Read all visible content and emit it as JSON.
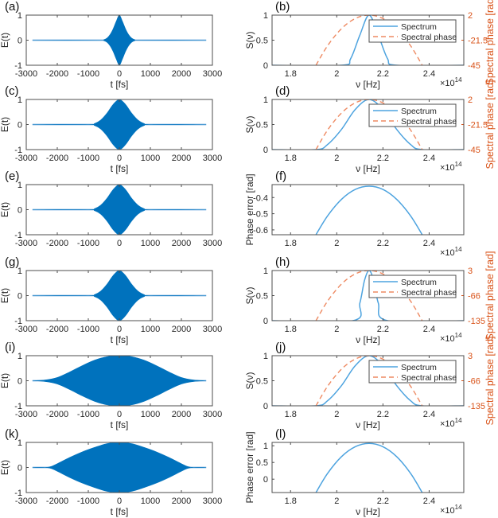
{
  "colors": {
    "signal": "#0072BD",
    "baseline": "#9CC6E8",
    "spectrum": "#4DA3DF",
    "phase": "#EE8A62",
    "right_axis": "#D95319",
    "axis": "#4D4D4D"
  },
  "legend": {
    "spectrum": "Spectrum",
    "phase": "Spectral phase"
  },
  "exponent_label": "×10",
  "exponent_power": "14",
  "chart_data": [
    {
      "panel": "(a)",
      "type": "area",
      "ylabel": "E(t)",
      "xlabel": "t [fs]",
      "xlim": [
        -3000,
        3000
      ],
      "ylim": [
        -1,
        1
      ],
      "xticks": [
        -3000,
        -2000,
        -1000,
        0,
        1000,
        2000,
        3000
      ],
      "xtick_labels": [
        "-3000",
        "-2000",
        "-1000",
        "0",
        "1000",
        "2000",
        "3000"
      ],
      "yticks": [
        -1,
        0,
        1
      ],
      "ytick_labels": [
        "-1",
        "0",
        "1"
      ],
      "envelope": {
        "t": [
          -2800,
          -600,
          -500,
          -400,
          -300,
          -200,
          -100,
          0,
          100,
          200,
          300,
          400,
          500,
          600,
          2800
        ],
        "amplitude": [
          0,
          0,
          0.02,
          0.08,
          0.22,
          0.45,
          0.75,
          1,
          0.75,
          0.45,
          0.22,
          0.08,
          0.02,
          0,
          0
        ]
      }
    },
    {
      "panel": "(b)",
      "type": "line",
      "ylabel": "S(ν)",
      "ylabel_right": "Spectral phase [rad]",
      "xlabel": "ν [Hz]",
      "xlim": [
        1.72,
        2.55
      ],
      "ylim": [
        0,
        1
      ],
      "ylim_right": [
        -45,
        2
      ],
      "xticks": [
        1.8,
        2,
        2.2,
        2.4
      ],
      "xtick_labels": [
        "1.8",
        "2",
        "2.2",
        "2.4"
      ],
      "yticks": [
        0,
        0.5,
        1
      ],
      "ytick_labels": [
        "0",
        "0.5",
        "1"
      ],
      "yticks_right": [
        -45,
        -21.5,
        2
      ],
      "ytick_right_labels": [
        "-45",
        "-21.5",
        "2"
      ],
      "legend": "top-right",
      "spectrum": {
        "x": [
          1.72,
          2.02,
          2.06,
          2.1,
          2.14,
          2.18,
          2.22,
          2.26,
          2.55
        ],
        "y": [
          0,
          0,
          0.13,
          0.6,
          1,
          0.6,
          0.13,
          0,
          0
        ]
      },
      "phase": {
        "x": [
          1.91,
          1.96,
          2.02,
          2.08,
          2.14,
          2.2,
          2.26,
          2.32,
          2.37
        ],
        "y": [
          -45,
          -26.8,
          -10.8,
          -1.2,
          2,
          -1.2,
          -10.8,
          -26.8,
          -45
        ]
      }
    },
    {
      "panel": "(c)",
      "type": "area",
      "ylabel": "E(t)",
      "xlabel": "t [fs]",
      "xlim": [
        -3000,
        3000
      ],
      "ylim": [
        -1,
        1
      ],
      "xticks": [
        -3000,
        -2000,
        -1000,
        0,
        1000,
        2000,
        3000
      ],
      "xtick_labels": [
        "-3000",
        "-2000",
        "-1000",
        "0",
        "1000",
        "2000",
        "3000"
      ],
      "yticks": [
        -1,
        0,
        1
      ],
      "ytick_labels": [
        "-1",
        "0",
        "1"
      ],
      "envelope": {
        "t": [
          -2800,
          -1000,
          -800,
          -600,
          -400,
          -200,
          0,
          200,
          400,
          600,
          800,
          1000,
          2800
        ],
        "amplitude": [
          0,
          0,
          0.04,
          0.18,
          0.45,
          0.8,
          1,
          0.8,
          0.45,
          0.18,
          0.04,
          0,
          0
        ]
      }
    },
    {
      "panel": "(d)",
      "type": "line",
      "ylabel": "S(ν)",
      "ylabel_right": "Spectral phase [rad]",
      "xlabel": "ν [Hz]",
      "xlim": [
        1.72,
        2.55
      ],
      "ylim": [
        0,
        1
      ],
      "ylim_right": [
        -45,
        2
      ],
      "xticks": [
        1.8,
        2,
        2.2,
        2.4
      ],
      "xtick_labels": [
        "1.8",
        "2",
        "2.2",
        "2.4"
      ],
      "yticks": [
        0,
        0.5,
        1
      ],
      "ytick_labels": [
        "0",
        "0.5",
        "1"
      ],
      "yticks_right": [
        -45,
        -21.5,
        2
      ],
      "ytick_right_labels": [
        "-45",
        "-21.5",
        "2"
      ],
      "legend": "top-right",
      "spectrum": {
        "x": [
          1.72,
          1.91,
          1.96,
          2.02,
          2.08,
          2.14,
          2.2,
          2.26,
          2.32,
          2.37,
          2.55
        ],
        "y": [
          0,
          0,
          0.1,
          0.4,
          0.8,
          1,
          0.8,
          0.4,
          0.1,
          0,
          0
        ]
      },
      "phase": {
        "x": [
          1.91,
          1.96,
          2.02,
          2.08,
          2.14,
          2.2,
          2.26,
          2.32,
          2.37
        ],
        "y": [
          -45,
          -26.8,
          -10.8,
          -1.2,
          2,
          -1.2,
          -10.8,
          -26.8,
          -45
        ]
      }
    },
    {
      "panel": "(e)",
      "type": "area",
      "ylabel": "E(t)",
      "xlabel": "",
      "xlim": [
        -3000,
        3000
      ],
      "ylim": [
        -1,
        1
      ],
      "xticks": [
        -3000,
        -2000,
        -1000,
        0,
        1000,
        2000,
        3000
      ],
      "xtick_labels": [
        "-3000",
        "-2000",
        "-1000",
        "0",
        "1000",
        "2000",
        "3000"
      ],
      "yticks": [
        -1,
        0,
        1
      ],
      "ytick_labels": [
        "-1",
        "0",
        "1"
      ],
      "envelope": {
        "t": [
          -2800,
          -1000,
          -800,
          -600,
          -400,
          -200,
          0,
          200,
          400,
          600,
          800,
          1000,
          2800
        ],
        "amplitude": [
          0,
          0,
          0.04,
          0.18,
          0.45,
          0.8,
          1,
          0.8,
          0.45,
          0.18,
          0.04,
          0,
          0
        ]
      }
    },
    {
      "panel": "(f)",
      "type": "line",
      "ylabel": "Phase error [rad]",
      "xlabel": "",
      "xlim": [
        1.72,
        2.55
      ],
      "ylim": [
        -0.63,
        -0.32
      ],
      "xticks": [
        1.8,
        2,
        2.2,
        2.4
      ],
      "xtick_labels": [
        "1.8",
        "2",
        "2.2",
        "2.4"
      ],
      "yticks": [
        -0.6,
        -0.5,
        -0.4
      ],
      "ytick_labels": [
        "-0.6",
        "-0.5",
        "-0.4"
      ],
      "phase_error": {
        "x": [
          1.91,
          1.96,
          2.02,
          2.08,
          2.14,
          2.2,
          2.26,
          2.32,
          2.37
        ],
        "y": [
          -0.63,
          -0.514,
          -0.412,
          -0.35,
          -0.33,
          -0.35,
          -0.412,
          -0.514,
          -0.63
        ]
      }
    },
    {
      "panel": "(g)",
      "type": "area",
      "ylabel": "E(t)",
      "xlabel": "t [fs]",
      "xlim": [
        -3000,
        3000
      ],
      "ylim": [
        -1,
        1
      ],
      "xticks": [
        -3000,
        -2000,
        -1000,
        0,
        1000,
        2000,
        3000
      ],
      "xtick_labels": [
        "-3000",
        "-2000",
        "-1000",
        "0",
        "1000",
        "2000",
        "3000"
      ],
      "yticks": [
        -1,
        0,
        1
      ],
      "ytick_labels": [
        "-1",
        "0",
        "1"
      ],
      "envelope": {
        "t": [
          -2800,
          -1000,
          -800,
          -600,
          -400,
          -200,
          0,
          200,
          400,
          600,
          800,
          1000,
          2800
        ],
        "amplitude": [
          0,
          0,
          0.04,
          0.18,
          0.45,
          0.8,
          1,
          0.8,
          0.45,
          0.18,
          0.04,
          0,
          0
        ]
      }
    },
    {
      "panel": "(h)",
      "type": "line",
      "ylabel": "S(ν)",
      "ylabel_right": "Spectral phase [rad]",
      "xlabel": "ν [Hz]",
      "xlim": [
        1.72,
        2.55
      ],
      "ylim": [
        0,
        1
      ],
      "ylim_right": [
        -135,
        3
      ],
      "xticks": [
        1.8,
        2,
        2.2,
        2.4
      ],
      "xtick_labels": [
        "1.8",
        "2",
        "2.2",
        "2.4"
      ],
      "yticks": [
        0,
        0.5,
        1
      ],
      "ytick_labels": [
        "0",
        "0.5",
        "1"
      ],
      "yticks_right": [
        -135,
        -66,
        3
      ],
      "ytick_right_labels": [
        "-135",
        "-66",
        "3"
      ],
      "legend": "top-right",
      "spectrum": {
        "x": [
          1.72,
          2.07,
          2.1,
          2.12,
          2.14,
          2.16,
          2.18,
          2.22,
          2.55
        ],
        "y": [
          0,
          0,
          0.35,
          0.8,
          1,
          0.8,
          0.35,
          0,
          0
        ]
      },
      "phase": {
        "x": [
          1.91,
          1.96,
          2.02,
          2.08,
          2.14,
          2.2,
          2.26,
          2.32,
          2.37
        ],
        "y": [
          -135,
          -81.5,
          -34.5,
          -6.4,
          3,
          -6.4,
          -34.5,
          -81.5,
          -135
        ]
      }
    },
    {
      "panel": "(i)",
      "type": "area",
      "ylabel": "E(t)",
      "xlabel": "t [fs]",
      "xlim": [
        -3000,
        3000
      ],
      "ylim": [
        -1,
        1
      ],
      "xticks": [
        -3000,
        -2000,
        -1000,
        0,
        1000,
        2000,
        3000
      ],
      "xtick_labels": [
        "-3000",
        "-2000",
        "-1000",
        "0",
        "1000",
        "2000",
        "3000"
      ],
      "yticks": [
        -1,
        0,
        1
      ],
      "ytick_labels": [
        "-1",
        "0",
        "1"
      ],
      "envelope": {
        "t": [
          -2800,
          -2400,
          -2000,
          -1600,
          -1200,
          -800,
          -400,
          0,
          400,
          800,
          1200,
          1600,
          2000,
          2400,
          2800
        ],
        "amplitude": [
          0,
          0.03,
          0.13,
          0.35,
          0.6,
          0.82,
          0.96,
          1,
          0.96,
          0.82,
          0.6,
          0.35,
          0.13,
          0.03,
          0
        ]
      }
    },
    {
      "panel": "(j)",
      "type": "line",
      "ylabel": "S(ν)",
      "ylabel_right": "Spectral phase [rad]",
      "xlabel": "ν [Hz]",
      "xlim": [
        1.72,
        2.55
      ],
      "ylim": [
        0,
        1
      ],
      "ylim_right": [
        -135,
        3
      ],
      "xticks": [
        1.8,
        2,
        2.2,
        2.4
      ],
      "xtick_labels": [
        "1.8",
        "2",
        "2.2",
        "2.4"
      ],
      "yticks": [
        0,
        0.5,
        1
      ],
      "ytick_labels": [
        "0",
        "0.5",
        "1"
      ],
      "yticks_right": [
        -135,
        -66,
        3
      ],
      "ytick_right_labels": [
        "-135",
        "-66",
        "3"
      ],
      "legend": "top-right",
      "spectrum": {
        "x": [
          1.72,
          1.91,
          1.96,
          2.02,
          2.08,
          2.14,
          2.2,
          2.26,
          2.32,
          2.37,
          2.55
        ],
        "y": [
          0,
          0,
          0.1,
          0.4,
          0.8,
          1,
          0.8,
          0.4,
          0.1,
          0,
          0
        ]
      },
      "phase": {
        "x": [
          1.91,
          1.96,
          2.02,
          2.08,
          2.14,
          2.2,
          2.26,
          2.32,
          2.37
        ],
        "y": [
          -135,
          -81.5,
          -34.5,
          -6.4,
          3,
          -6.4,
          -34.5,
          -81.5,
          -135
        ]
      }
    },
    {
      "panel": "(k)",
      "type": "area",
      "ylabel": "E(t)",
      "xlabel": "t [fs]",
      "xlim": [
        -3000,
        3000
      ],
      "ylim": [
        -1,
        1
      ],
      "xticks": [
        -3000,
        -2000,
        -1000,
        0,
        1000,
        2000,
        3000
      ],
      "xtick_labels": [
        "-3000",
        "-2000",
        "-1000",
        "0",
        "1000",
        "2000",
        "3000"
      ],
      "yticks": [
        -1,
        0,
        1
      ],
      "ytick_labels": [
        "-1",
        "0",
        "1"
      ],
      "envelope": {
        "t": [
          -2800,
          -2400,
          -2200,
          -2000,
          -1600,
          -1200,
          -800,
          -400,
          0,
          400,
          800,
          1200,
          1600,
          2000,
          2200,
          2400,
          2800
        ],
        "amplitude": [
          0,
          0,
          0.04,
          0.15,
          0.4,
          0.62,
          0.8,
          0.95,
          1,
          0.95,
          0.8,
          0.62,
          0.4,
          0.15,
          0.04,
          0,
          0
        ]
      }
    },
    {
      "panel": "(l)",
      "type": "line",
      "ylabel": "Phase error [rad]",
      "xlabel": "ν [Hz]",
      "xlim": [
        1.72,
        2.55
      ],
      "ylim": [
        -0.4,
        1.1
      ],
      "xticks": [
        1.8,
        2,
        2.2,
        2.4
      ],
      "xtick_labels": [
        "1.8",
        "2",
        "2.2",
        "2.4"
      ],
      "yticks": [
        0,
        0.5,
        1
      ],
      "ytick_labels": [
        "0",
        "0.5",
        "1"
      ],
      "phase_error": {
        "x": [
          1.91,
          1.96,
          2.02,
          2.08,
          2.14,
          2.2,
          2.26,
          2.32,
          2.37
        ],
        "y": [
          -0.4,
          0.17,
          0.67,
          0.97,
          1.07,
          0.97,
          0.67,
          0.17,
          -0.4
        ]
      }
    }
  ]
}
